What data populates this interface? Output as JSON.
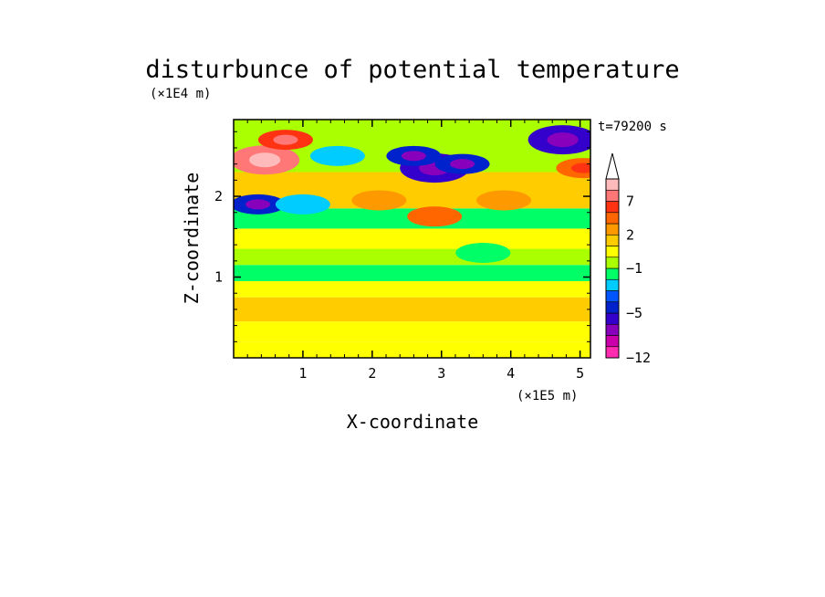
{
  "chart_data": {
    "type": "heatmap",
    "title": "disturbunce of potential temperature",
    "xlabel": "X-coordinate",
    "ylabel": "Z-coordinate",
    "x_unit": "(×1E5 m)",
    "y_unit": "(×1E4 m)",
    "time_label": "t=79200 s",
    "xlim": [
      0,
      5.15
    ],
    "ylim": [
      0,
      2.95
    ],
    "x_ticks": [
      {
        "value": 1,
        "label": "1"
      },
      {
        "value": 2,
        "label": "2"
      },
      {
        "value": 3,
        "label": "3"
      },
      {
        "value": 4,
        "label": "4"
      },
      {
        "value": 5,
        "label": "5"
      }
    ],
    "y_ticks": [
      {
        "value": 1,
        "label": "1"
      },
      {
        "value": 2,
        "label": "2"
      }
    ],
    "colorbar": {
      "levels": [
        -12,
        -10,
        -8,
        -6,
        -5,
        -4,
        -3,
        -2,
        -1,
        0,
        1,
        2,
        3,
        5,
        7,
        9,
        11
      ],
      "colors": [
        "#ff2bb0",
        "#cc00aa",
        "#8800bb",
        "#3300cc",
        "#0022cc",
        "#0055ff",
        "#00ccff",
        "#00ff66",
        "#aaff00",
        "#ffff00",
        "#ffcc00",
        "#ff9900",
        "#ff6600",
        "#ff3311",
        "#ff7777",
        "#ffbbbb"
      ],
      "extend_top": true,
      "labels": [
        {
          "value": 7,
          "label": "7"
        },
        {
          "value": 2,
          "label": "2"
        },
        {
          "value": -1,
          "label": "−1"
        },
        {
          "value": -5,
          "label": "−5"
        },
        {
          "value": -12,
          "label": "−12"
        }
      ]
    },
    "field_description_rows": [
      {
        "z_range": [
          0.0,
          0.2
        ],
        "value": 0.2
      },
      {
        "z_range": [
          0.2,
          0.45
        ],
        "value": 0.8
      },
      {
        "z_range": [
          0.45,
          0.75
        ],
        "value": 1.5
      },
      {
        "z_range": [
          0.75,
          0.95
        ],
        "value": 0.3
      },
      {
        "z_range": [
          0.95,
          1.15
        ],
        "value": -1.5
      },
      {
        "z_range": [
          1.15,
          1.35
        ],
        "value": -0.5
      },
      {
        "z_range": [
          1.35,
          1.6
        ],
        "value": 0.8
      },
      {
        "z_range": [
          1.6,
          1.85
        ],
        "value": -1.5
      },
      {
        "z_range": [
          1.85,
          2.3
        ],
        "value": 1.5
      },
      {
        "z_range": [
          2.3,
          2.95
        ],
        "value": -0.5
      }
    ],
    "features": [
      {
        "x": 2.9,
        "z": 2.35,
        "value": -6
      },
      {
        "x": 2.6,
        "z": 2.5,
        "value": -4.5
      },
      {
        "x": 3.3,
        "z": 2.4,
        "value": -4.5
      },
      {
        "x": 4.75,
        "z": 2.7,
        "value": -5.5
      },
      {
        "x": 0.45,
        "z": 2.45,
        "value": 7
      },
      {
        "x": 0.75,
        "z": 2.7,
        "value": 5
      },
      {
        "x": 5.05,
        "z": 2.35,
        "value": 4
      },
      {
        "x": 0.35,
        "z": 1.9,
        "value": -4.5
      },
      {
        "x": 1.0,
        "z": 1.9,
        "value": -3
      },
      {
        "x": 2.9,
        "z": 1.75,
        "value": 3
      },
      {
        "x": 2.1,
        "z": 1.95,
        "value": 2.5
      },
      {
        "x": 3.9,
        "z": 1.95,
        "value": 2.5
      },
      {
        "x": 1.5,
        "z": 2.5,
        "value": -2.5
      },
      {
        "x": 3.6,
        "z": 1.3,
        "value": -2
      }
    ]
  }
}
